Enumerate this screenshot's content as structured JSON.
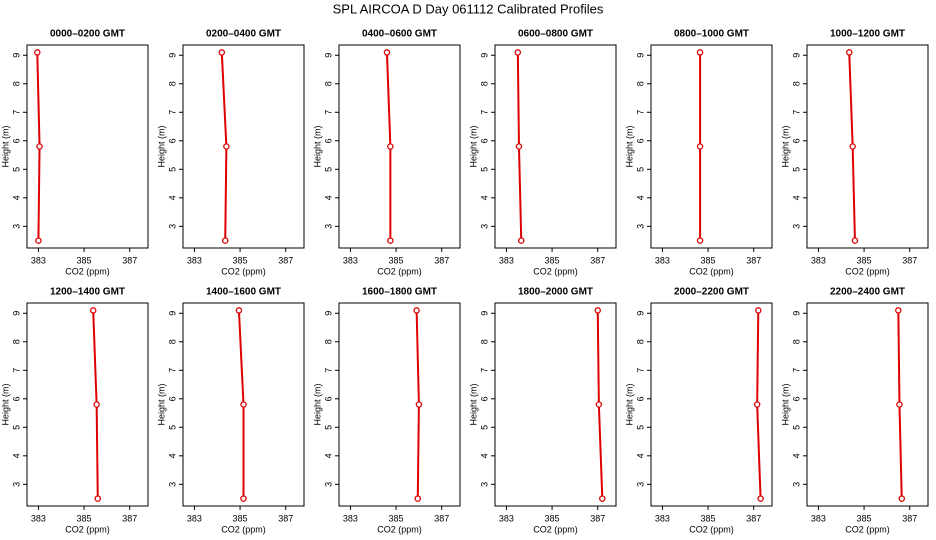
{
  "title": "SPL AIRCOA D  Day 061112  Calibrated Profiles",
  "chart_data": [
    {
      "type": "line",
      "title": "0000–0200 GMT",
      "xlabel": "CO2 (ppm)",
      "ylabel": "Height (m)",
      "color": "#dd0000",
      "x": [
        382.95,
        383.05,
        383.0
      ],
      "y": [
        9.1,
        5.8,
        2.5
      ],
      "xlim": [
        382.5,
        387.8
      ],
      "xticks": [
        383,
        385,
        387
      ],
      "ylim": [
        2.24,
        9.36
      ],
      "yticks": [
        3,
        4,
        5,
        6,
        7,
        8,
        9
      ]
    },
    {
      "type": "line",
      "title": "0200–0400 GMT",
      "xlabel": "CO2 (ppm)",
      "ylabel": "Height (m)",
      "color": "#dd0000",
      "x": [
        384.2,
        384.4,
        384.35
      ],
      "y": [
        9.1,
        5.8,
        2.5
      ],
      "xlim": [
        382.5,
        387.8
      ],
      "xticks": [
        383,
        385,
        387
      ],
      "ylim": [
        2.24,
        9.36
      ],
      "yticks": [
        3,
        4,
        5,
        6,
        7,
        8,
        9
      ]
    },
    {
      "type": "line",
      "title": "0400–0600 GMT",
      "xlabel": "CO2 (ppm)",
      "ylabel": "Height (m)",
      "color": "#dd0000",
      "x": [
        384.6,
        384.75,
        384.75
      ],
      "y": [
        9.1,
        5.8,
        2.5
      ],
      "xlim": [
        382.5,
        387.8
      ],
      "xticks": [
        383,
        385,
        387
      ],
      "ylim": [
        2.24,
        9.36
      ],
      "yticks": [
        3,
        4,
        5,
        6,
        7,
        8,
        9
      ]
    },
    {
      "type": "line",
      "title": "0600–0800 GMT",
      "xlabel": "CO2 (ppm)",
      "ylabel": "Height (m)",
      "color": "#dd0000",
      "x": [
        383.5,
        383.55,
        383.65
      ],
      "y": [
        9.1,
        5.8,
        2.5
      ],
      "xlim": [
        382.5,
        387.8
      ],
      "xticks": [
        383,
        385,
        387
      ],
      "ylim": [
        2.24,
        9.36
      ],
      "yticks": [
        3,
        4,
        5,
        6,
        7,
        8,
        9
      ]
    },
    {
      "type": "line",
      "title": "0800–1000 GMT",
      "xlabel": "CO2 (ppm)",
      "ylabel": "Height (m)",
      "color": "#dd0000",
      "x": [
        384.65,
        384.65,
        384.65
      ],
      "y": [
        9.1,
        5.8,
        2.5
      ],
      "xlim": [
        382.5,
        387.8
      ],
      "xticks": [
        383,
        385,
        387
      ],
      "ylim": [
        2.24,
        9.36
      ],
      "yticks": [
        3,
        4,
        5,
        6,
        7,
        8,
        9
      ]
    },
    {
      "type": "line",
      "title": "1000–1200 GMT",
      "xlabel": "CO2 (ppm)",
      "ylabel": "Height (m)",
      "color": "#dd0000",
      "x": [
        384.35,
        384.5,
        384.6
      ],
      "y": [
        9.1,
        5.8,
        2.5
      ],
      "xlim": [
        382.5,
        387.8
      ],
      "xticks": [
        383,
        385,
        387
      ],
      "ylim": [
        2.24,
        9.36
      ],
      "yticks": [
        3,
        4,
        5,
        6,
        7,
        8,
        9
      ]
    },
    {
      "type": "line",
      "title": "1200–1400 GMT",
      "xlabel": "CO2 (ppm)",
      "ylabel": "Height (m)",
      "color": "#dd0000",
      "x": [
        385.4,
        385.55,
        385.6
      ],
      "y": [
        9.1,
        5.8,
        2.5
      ],
      "xlim": [
        382.5,
        387.8
      ],
      "xticks": [
        383,
        385,
        387
      ],
      "ylim": [
        2.24,
        9.36
      ],
      "yticks": [
        3,
        4,
        5,
        6,
        7,
        8,
        9
      ]
    },
    {
      "type": "line",
      "title": "1400–1600 GMT",
      "xlabel": "CO2 (ppm)",
      "ylabel": "Height (m)",
      "color": "#dd0000",
      "x": [
        384.95,
        385.15,
        385.15
      ],
      "y": [
        9.1,
        5.8,
        2.5
      ],
      "xlim": [
        382.5,
        387.8
      ],
      "xticks": [
        383,
        385,
        387
      ],
      "ylim": [
        2.24,
        9.36
      ],
      "yticks": [
        3,
        4,
        5,
        6,
        7,
        8,
        9
      ]
    },
    {
      "type": "line",
      "title": "1600–1800 GMT",
      "xlabel": "CO2 (ppm)",
      "ylabel": "Height (m)",
      "color": "#dd0000",
      "x": [
        385.9,
        386.0,
        385.95
      ],
      "y": [
        9.1,
        5.8,
        2.5
      ],
      "xlim": [
        382.5,
        387.8
      ],
      "xticks": [
        383,
        385,
        387
      ],
      "ylim": [
        2.24,
        9.36
      ],
      "yticks": [
        3,
        4,
        5,
        6,
        7,
        8,
        9
      ]
    },
    {
      "type": "line",
      "title": "1800–2000 GMT",
      "xlabel": "CO2 (ppm)",
      "ylabel": "Height (m)",
      "color": "#dd0000",
      "x": [
        387.0,
        387.05,
        387.2
      ],
      "y": [
        9.1,
        5.8,
        2.5
      ],
      "xlim": [
        382.5,
        387.8
      ],
      "xticks": [
        383,
        385,
        387
      ],
      "ylim": [
        2.24,
        9.36
      ],
      "yticks": [
        3,
        4,
        5,
        6,
        7,
        8,
        9
      ]
    },
    {
      "type": "line",
      "title": "2000–2200 GMT",
      "xlabel": "CO2 (ppm)",
      "ylabel": "Height (m)",
      "color": "#dd0000",
      "x": [
        387.2,
        387.15,
        387.3
      ],
      "y": [
        9.1,
        5.8,
        2.5
      ],
      "xlim": [
        382.5,
        387.8
      ],
      "xticks": [
        383,
        385,
        387
      ],
      "ylim": [
        2.24,
        9.36
      ],
      "yticks": [
        3,
        4,
        5,
        6,
        7,
        8,
        9
      ]
    },
    {
      "type": "line",
      "title": "2200–2400 GMT",
      "xlabel": "CO2 (ppm)",
      "ylabel": "Height (m)",
      "color": "#dd0000",
      "x": [
        386.5,
        386.55,
        386.65
      ],
      "y": [
        9.1,
        5.8,
        2.5
      ],
      "xlim": [
        382.5,
        387.8
      ],
      "xticks": [
        383,
        385,
        387
      ],
      "ylim": [
        2.24,
        9.36
      ],
      "yticks": [
        3,
        4,
        5,
        6,
        7,
        8,
        9
      ]
    }
  ]
}
